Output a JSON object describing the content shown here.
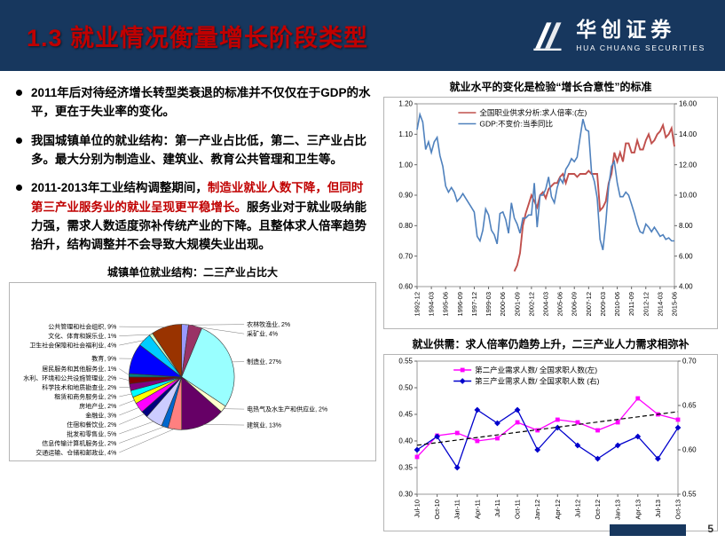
{
  "header": {
    "title": "1.3 就业情况衡量增长阶段类型",
    "logo": {
      "cn": "华创证券",
      "en": "HUA CHUANG SECURITIES"
    }
  },
  "colors": {
    "header_bg": "#17375E",
    "title_red": "#C00000",
    "accent_red": "#C00000",
    "ratio_line": "#C0504D",
    "gdp_line": "#4F81BD",
    "secondary_industry_line": "#FF00FF",
    "tertiary_industry_line": "#0000CC"
  },
  "bullets": [
    [
      {
        "t": "2011年后对待经济增长转型类衰退的标准并不仅仅在于GDP的水平，更在于失业率的变化。",
        "red": false
      }
    ],
    [
      {
        "t": "我国城镇单位的就业结构：第一产业占比低，第二、三产业占比多。最大分别为制造业、建筑业、教育公共管理和卫生等。",
        "red": false
      }
    ],
    [
      {
        "t": "2011-2013年工业结构调整期间，",
        "red": false
      },
      {
        "t": "制造业就业人数下降，但同时第三产业服务业的就业呈现更平稳增长。",
        "red": true
      },
      {
        "t": "服务业对于就业吸纳能力强，需求人数适度弥补传统产业的下降。且整体求人倍率趋势抬升，结构调整并不会导致大规模失业出现。",
        "red": false
      }
    ]
  ],
  "page_number": "5",
  "chart_data": [
    {
      "id": "employment_vs_gdp",
      "type": "line",
      "title": "就业水平的变化是检验“增长合意性”的标准",
      "n_points": 91,
      "tick_every": 5,
      "x_labels": [
        "1992-12",
        "1994-03",
        "1995-06",
        "1996-09",
        "1997-12",
        "1999-03",
        "2000-06",
        "2001-09",
        "2002-12",
        "2004-03",
        "2005-06",
        "2006-09",
        "2007-12",
        "2009-03",
        "2010-06",
        "2011-09",
        "2012-12",
        "2014-03",
        "2015-06"
      ],
      "left_axis": {
        "min": 0.6,
        "max": 1.2,
        "ticks": [
          0.6,
          0.7,
          0.8,
          0.9,
          1.0,
          1.1,
          1.2
        ]
      },
      "right_axis": {
        "min": 4.0,
        "max": 16.0,
        "ticks": [
          4.0,
          6.0,
          8.0,
          10.0,
          12.0,
          14.0,
          16.0
        ]
      },
      "series": [
        {
          "name": "全国职业供求分析:求人倍率:(左)",
          "axis": "left",
          "color": "#C0504D",
          "width": 1.9,
          "start_index": 34,
          "values": [
            0.65,
            0.67,
            0.71,
            0.8,
            0.84,
            0.87,
            0.9,
            0.88,
            0.86,
            0.9,
            0.91,
            0.89,
            0.92,
            0.93,
            0.94,
            0.94,
            0.96,
            0.97,
            0.94,
            0.97,
            0.97,
            0.97,
            0.96,
            0.97,
            0.97,
            0.97,
            0.98,
            0.97,
            0.97,
            0.97,
            0.85,
            0.86,
            0.88,
            0.94,
            0.97,
            1.04,
            1.01,
            1.04,
            1.01,
            1.07,
            1.07,
            1.04,
            1.04,
            1.08,
            1.05,
            1.05,
            1.08,
            1.1,
            1.07,
            1.08,
            1.1,
            1.11,
            1.13,
            1.09,
            1.1,
            1.12,
            1.06
          ]
        },
        {
          "name": "GDP:不变价:当季同比",
          "axis": "right",
          "color": "#4F81BD",
          "width": 1.6,
          "start_index": 0,
          "values": [
            14.3,
            15.3,
            14.8,
            13.0,
            13.5,
            12.8,
            13.5,
            13.8,
            12.6,
            11.9,
            10.6,
            10.2,
            10.5,
            10.2,
            9.6,
            9.8,
            10.1,
            9.8,
            9.5,
            9.2,
            8.9,
            7.3,
            7.0,
            7.7,
            9.1,
            8.7,
            7.7,
            7.4,
            6.8,
            8.8,
            8.9,
            8.4,
            7.5,
            9.5,
            8.5,
            8.1,
            7.5,
            8.5,
            8.5,
            8.7,
            8.7,
            10.8,
            7.9,
            10.0,
            10.0,
            10.4,
            11.2,
            9.9,
            9.5,
            10.5,
            11.1,
            10.8,
            11.7,
            12.0,
            12.4,
            12.2,
            12.5,
            13.8,
            15.0,
            14.3,
            14.2,
            11.5,
            10.9,
            9.8,
            7.1,
            6.4,
            8.2,
            10.6,
            11.9,
            12.2,
            10.8,
            9.9,
            9.9,
            10.2,
            10.0,
            9.4,
            8.8,
            8.1,
            7.6,
            7.5,
            8.1,
            7.9,
            7.6,
            7.9,
            7.6,
            7.3,
            7.4,
            7.1,
            7.2,
            7.0,
            7.0
          ]
        }
      ]
    },
    {
      "id": "employment_structure_pie",
      "type": "pie",
      "title": "城镇单位就业结构：二三产业占比大",
      "sectors": [
        {
          "name": "农林牧渔业",
          "pct": 2,
          "color": "#9999FF"
        },
        {
          "name": "采矿业",
          "pct": 4,
          "color": "#993366"
        },
        {
          "name": "制造业",
          "pct": 27,
          "color": "#99FFFF"
        },
        {
          "name": "电热气及水生产和供应业",
          "pct": 2,
          "color": "#FFFFCC"
        },
        {
          "name": "建筑业",
          "pct": 13,
          "color": "#660066"
        },
        {
          "name": "交通运输、仓储和邮政业",
          "pct": 4,
          "color": "#FF8080"
        },
        {
          "name": "信息传输计算机服务业",
          "pct": 2,
          "color": "#0066CC"
        },
        {
          "name": "批发和零售业",
          "pct": 5,
          "color": "#CCCCFF"
        },
        {
          "name": "住宿和餐饮业",
          "pct": 2,
          "color": "#000080"
        },
        {
          "name": "金融业",
          "pct": 3,
          "color": "#FF00FF"
        },
        {
          "name": "房地产业",
          "pct": 2,
          "color": "#FFFF00"
        },
        {
          "name": "租赁和商务服务业",
          "pct": 2,
          "color": "#00FFFF"
        },
        {
          "name": "科学技术和地质勘查业",
          "pct": 2,
          "color": "#800080"
        },
        {
          "name": "水利、环境和公共设施管理业",
          "pct": 2,
          "color": "#800000"
        },
        {
          "name": "居民服务和其他服务业",
          "pct": 1,
          "color": "#008080"
        },
        {
          "name": "教育",
          "pct": 9,
          "color": "#0000FF"
        },
        {
          "name": "卫生社会保障和社会福利业",
          "pct": 4,
          "color": "#00CCFF"
        },
        {
          "name": "文化、体育和娱乐业",
          "pct": 1,
          "color": "#CCFFCC"
        },
        {
          "name": "公共管理和社会组织",
          "pct": 9,
          "color": "#993300"
        }
      ]
    },
    {
      "id": "supply_demand",
      "type": "line",
      "title": "就业供需：求人倍率仍趋势上升，二三产业人力需求相弥补",
      "n_points": 14,
      "tick_every": 1,
      "x_labels": [
        "Jul-10",
        "Oct-10",
        "Jan-11",
        "Apr-11",
        "Jul-11",
        "Oct-11",
        "Jan-12",
        "Apr-12",
        "Jul-12",
        "Oct-12",
        "Jan-13",
        "Apr-13",
        "Jul-13",
        "Oct-13"
      ],
      "left_axis": {
        "min": 0.3,
        "max": 0.55,
        "ticks": [
          0.3,
          0.35,
          0.4,
          0.45,
          0.5,
          0.55
        ]
      },
      "right_axis": {
        "min": 0.55,
        "max": 0.7,
        "ticks": [
          0.55,
          0.6,
          0.65,
          0.7
        ]
      },
      "series": [
        {
          "name": "第二产业需求人数/ 全国求职人数(左)",
          "axis": "left",
          "color": "#FF00FF",
          "width": 1.3,
          "marker": "square",
          "start_index": 0,
          "values": [
            0.37,
            0.41,
            0.415,
            0.4,
            0.405,
            0.435,
            0.42,
            0.44,
            0.435,
            0.42,
            0.435,
            0.48,
            0.45,
            0.44
          ]
        },
        {
          "name": "第三产业需求人数/ 全国求职人数 (右)",
          "axis": "right",
          "color": "#0000CC",
          "width": 1.3,
          "marker": "diamond",
          "start_index": 0,
          "values": [
            0.6,
            0.615,
            0.58,
            0.645,
            0.63,
            0.645,
            0.6,
            0.625,
            0.605,
            0.59,
            0.605,
            0.615,
            0.59,
            0.625
          ]
        },
        {
          "name": "",
          "axis": "left",
          "color": "#000000",
          "width": 1.2,
          "dash": true,
          "trend": [
            0.392,
            0.455
          ]
        }
      ]
    }
  ]
}
